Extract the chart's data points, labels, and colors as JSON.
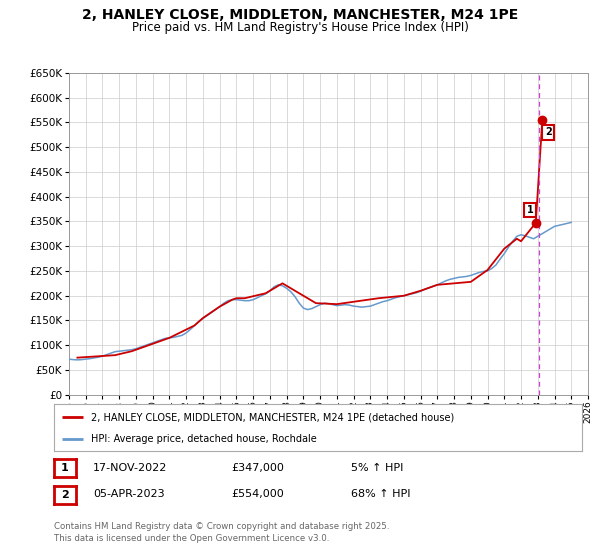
{
  "title": "2, HANLEY CLOSE, MIDDLETON, MANCHESTER, M24 1PE",
  "subtitle": "Price paid vs. HM Land Registry's House Price Index (HPI)",
  "title_fontsize": 10,
  "subtitle_fontsize": 8.5,
  "background_color": "#ffffff",
  "plot_bg_color": "#ffffff",
  "grid_color": "#cccccc",
  "xlim": [
    1995,
    2026
  ],
  "ylim": [
    0,
    650000
  ],
  "yticks": [
    0,
    50000,
    100000,
    150000,
    200000,
    250000,
    300000,
    350000,
    400000,
    450000,
    500000,
    550000,
    600000,
    650000
  ],
  "xticks": [
    1995,
    1996,
    1997,
    1998,
    1999,
    2000,
    2001,
    2002,
    2003,
    2004,
    2005,
    2006,
    2007,
    2008,
    2009,
    2010,
    2011,
    2012,
    2013,
    2014,
    2015,
    2016,
    2017,
    2018,
    2019,
    2020,
    2021,
    2022,
    2023,
    2024,
    2025,
    2026
  ],
  "hpi_color": "#6699cc",
  "price_color": "#cc0000",
  "vline_color": "#cc44cc",
  "vline_x": 2023.1,
  "marker1_x": 2022.88,
  "marker1_y": 347000,
  "marker2_x": 2023.27,
  "marker2_y": 554000,
  "label1": "1",
  "label2": "2",
  "legend_label_price": "2, HANLEY CLOSE, MIDDLETON, MANCHESTER, M24 1PE (detached house)",
  "legend_label_hpi": "HPI: Average price, detached house, Rochdale",
  "table_row1": [
    "1",
    "17-NOV-2022",
    "£347,000",
    "5% ↑ HPI"
  ],
  "table_row2": [
    "2",
    "05-APR-2023",
    "£554,000",
    "68% ↑ HPI"
  ],
  "footer": "Contains HM Land Registry data © Crown copyright and database right 2025.\nThis data is licensed under the Open Government Licence v3.0.",
  "hpi_x": [
    1995.0,
    1995.25,
    1995.5,
    1995.75,
    1996.0,
    1996.25,
    1996.5,
    1996.75,
    1997.0,
    1997.25,
    1997.5,
    1997.75,
    1998.0,
    1998.25,
    1998.5,
    1998.75,
    1999.0,
    1999.25,
    1999.5,
    1999.75,
    2000.0,
    2000.25,
    2000.5,
    2000.75,
    2001.0,
    2001.25,
    2001.5,
    2001.75,
    2002.0,
    2002.25,
    2002.5,
    2002.75,
    2003.0,
    2003.25,
    2003.5,
    2003.75,
    2004.0,
    2004.25,
    2004.5,
    2004.75,
    2005.0,
    2005.25,
    2005.5,
    2005.75,
    2006.0,
    2006.25,
    2006.5,
    2006.75,
    2007.0,
    2007.25,
    2007.5,
    2007.75,
    2008.0,
    2008.25,
    2008.5,
    2008.75,
    2009.0,
    2009.25,
    2009.5,
    2009.75,
    2010.0,
    2010.25,
    2010.5,
    2010.75,
    2011.0,
    2011.25,
    2011.5,
    2011.75,
    2012.0,
    2012.25,
    2012.5,
    2012.75,
    2013.0,
    2013.25,
    2013.5,
    2013.75,
    2014.0,
    2014.25,
    2014.5,
    2014.75,
    2015.0,
    2015.25,
    2015.5,
    2015.75,
    2016.0,
    2016.25,
    2016.5,
    2016.75,
    2017.0,
    2017.25,
    2017.5,
    2017.75,
    2018.0,
    2018.25,
    2018.5,
    2018.75,
    2019.0,
    2019.25,
    2019.5,
    2019.75,
    2020.0,
    2020.25,
    2020.5,
    2020.75,
    2021.0,
    2021.25,
    2021.5,
    2021.75,
    2022.0,
    2022.25,
    2022.5,
    2022.75,
    2023.0,
    2023.25,
    2023.5,
    2023.75,
    2024.0,
    2024.25,
    2024.5,
    2024.75,
    2025.0
  ],
  "hpi_y": [
    72000,
    71000,
    70500,
    71000,
    72000,
    73000,
    74500,
    76000,
    78000,
    81000,
    84000,
    87000,
    88000,
    89000,
    90000,
    91000,
    93000,
    96000,
    99000,
    102000,
    105000,
    108000,
    111000,
    114000,
    115000,
    116000,
    118000,
    120000,
    125000,
    132000,
    140000,
    148000,
    154000,
    160000,
    166000,
    172000,
    178000,
    185000,
    190000,
    192000,
    192000,
    191000,
    190000,
    190000,
    192000,
    196000,
    200000,
    204000,
    210000,
    218000,
    222000,
    220000,
    215000,
    208000,
    198000,
    185000,
    175000,
    172000,
    174000,
    178000,
    182000,
    185000,
    184000,
    182000,
    180000,
    181000,
    182000,
    181000,
    179000,
    178000,
    177000,
    178000,
    179000,
    182000,
    185000,
    188000,
    190000,
    193000,
    196000,
    198000,
    200000,
    202000,
    204000,
    206000,
    209000,
    213000,
    216000,
    219000,
    222000,
    226000,
    230000,
    233000,
    235000,
    237000,
    238000,
    239000,
    241000,
    244000,
    247000,
    249000,
    250000,
    255000,
    262000,
    274000,
    285000,
    298000,
    310000,
    320000,
    323000,
    321000,
    318000,
    315000,
    320000,
    325000,
    330000,
    335000,
    340000,
    342000,
    344000,
    346000,
    348000
  ],
  "price_x": [
    1995.5,
    1997.75,
    1998.75,
    2001.0,
    2002.5,
    2003.0,
    2004.0,
    2004.75,
    2005.0,
    2005.5,
    2006.75,
    2007.75,
    2008.25,
    2009.75,
    2011.0,
    2013.5,
    2015.0,
    2016.0,
    2017.0,
    2018.0,
    2019.0,
    2020.0,
    2021.0,
    2021.75,
    2022.0,
    2022.88,
    2023.27
  ],
  "price_y": [
    75000,
    80000,
    88000,
    115000,
    140000,
    155000,
    178000,
    192000,
    195000,
    195000,
    205000,
    225000,
    215000,
    185000,
    183000,
    195000,
    200000,
    210000,
    222000,
    225000,
    228000,
    252000,
    295000,
    315000,
    310000,
    347000,
    554000
  ]
}
